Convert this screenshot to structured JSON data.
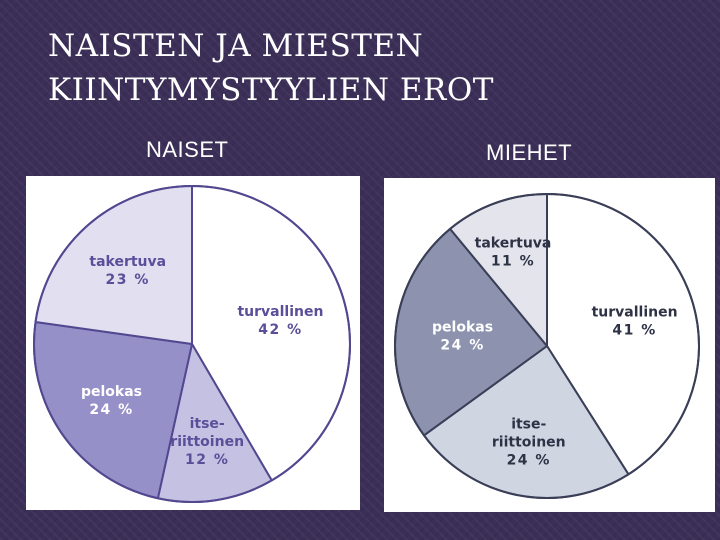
{
  "title_lines": [
    "NAISTEN JA MIESTEN",
    "KIINTYMYSTYYLIEN EROT"
  ],
  "chart_data": [
    {
      "type": "pie",
      "title": "NAISET",
      "slices": [
        {
          "label_lines": [
            "turvallinen"
          ],
          "value_label": "42 %",
          "value": 42,
          "color": "#ffffff"
        },
        {
          "label_lines": [
            "itse-",
            "riittoinen"
          ],
          "value_label": "12 %",
          "value": 12,
          "color": "#c5c1e3"
        },
        {
          "label_lines": [
            "pelokas"
          ],
          "value_label": "24 %",
          "value": 24,
          "color": "#9690c8"
        },
        {
          "label_lines": [
            "takertuva"
          ],
          "value_label": "23 %",
          "value": 23,
          "color": "#e1dff0"
        }
      ],
      "label_color_light": "#5a4f98",
      "label_color_dark": "#ffffff",
      "edge_color": "#514890"
    },
    {
      "type": "pie",
      "title": "MIEHET",
      "slices": [
        {
          "label_lines": [
            "turvallinen"
          ],
          "value_label": "41 %",
          "value": 41,
          "color": "#ffffff"
        },
        {
          "label_lines": [
            "itse-",
            "riittoinen"
          ],
          "value_label": "24 %",
          "value": 24,
          "color": "#d0d5e2"
        },
        {
          "label_lines": [
            "pelokas"
          ],
          "value_label": "24 %",
          "value": 24,
          "color": "#8d93ae"
        },
        {
          "label_lines": [
            "takertuva"
          ],
          "value_label": "11 %",
          "value": 11,
          "color": "#e3e4ec"
        }
      ],
      "label_color_light": "#2e3245",
      "label_color_dark": "#ffffff",
      "edge_color": "#3a3f57"
    }
  ]
}
